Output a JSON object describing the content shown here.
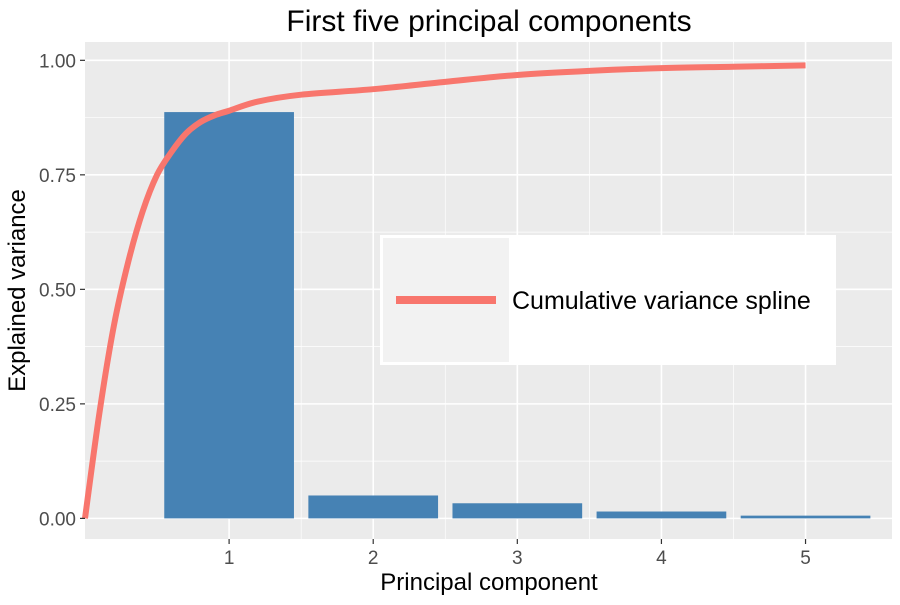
{
  "chart_data": {
    "type": "bar",
    "title": "First five principal components",
    "xlabel": "Principal component",
    "ylabel": "Explained variance",
    "categories": [
      "1",
      "2",
      "3",
      "4",
      "5"
    ],
    "x": [
      1,
      2,
      3,
      4,
      5
    ],
    "values": [
      0.887,
      0.05,
      0.033,
      0.015,
      0.006
    ],
    "bar_color": "#4682b4",
    "xlim": [
      0,
      5.6
    ],
    "ylim": [
      -0.045,
      1.04
    ],
    "yticks": [
      0,
      0.25,
      0.5,
      0.75,
      1.0
    ],
    "ytick_labels": [
      "0.00",
      "0.25",
      "0.50",
      "0.75",
      "1.00"
    ],
    "grid": true,
    "panel_background": "#ebebeb",
    "line_series": {
      "name": "Cumulative variance spline",
      "color": "#f8766d",
      "x": [
        0,
        0.1,
        0.2,
        0.3,
        0.4,
        0.5,
        0.6,
        0.7,
        0.8,
        0.9,
        1.0,
        1.2,
        1.5,
        2.0,
        2.5,
        3.0,
        3.5,
        4.0,
        4.5,
        5.0
      ],
      "y": [
        0.0,
        0.23,
        0.42,
        0.56,
        0.67,
        0.75,
        0.8,
        0.84,
        0.865,
        0.88,
        0.89,
        0.91,
        0.925,
        0.937,
        0.953,
        0.968,
        0.977,
        0.983,
        0.986,
        0.989
      ]
    },
    "legend": {
      "position": "center-right",
      "entries": [
        "Cumulative variance spline"
      ]
    }
  }
}
